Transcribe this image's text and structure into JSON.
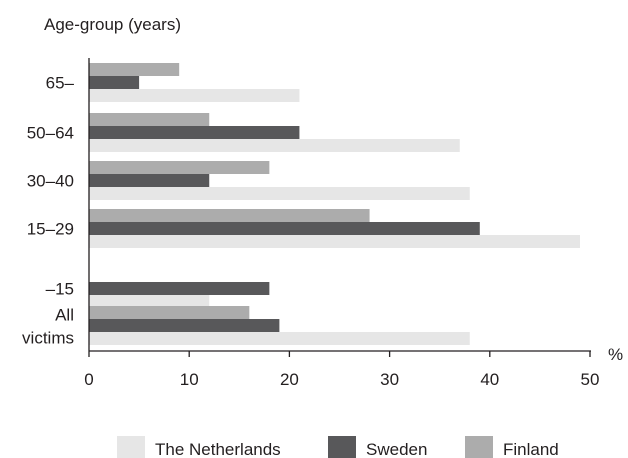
{
  "chart_data": {
    "type": "bar",
    "orientation": "horizontal",
    "title": "",
    "ylabel": "Age-group (years)",
    "xlabel": "%",
    "xlim": [
      0,
      50
    ],
    "xticks": [
      0,
      10,
      20,
      30,
      40,
      50
    ],
    "categories": [
      [
        "65–"
      ],
      [
        "50–64"
      ],
      [
        "30–40"
      ],
      [
        "15–29"
      ],
      [
        "–15"
      ],
      [
        "All",
        "victims"
      ]
    ],
    "series": [
      {
        "name": "The Netherlands",
        "color": "#e6e6e6",
        "values": [
          21,
          37,
          38,
          49,
          12,
          38
        ]
      },
      {
        "name": "Sweden",
        "color": "#58585a",
        "values": [
          5,
          21,
          12,
          39,
          18,
          19
        ]
      },
      {
        "name": "Finland",
        "color": "#acacac",
        "values": [
          9,
          12,
          18,
          28,
          0,
          16
        ]
      }
    ],
    "bar_stack_order_top_to_bottom": [
      "Finland",
      "Sweden",
      "The Netherlands"
    ],
    "legend": {
      "position": "bottom",
      "order": [
        "The Netherlands",
        "Sweden",
        "Finland"
      ]
    },
    "grid": false
  }
}
